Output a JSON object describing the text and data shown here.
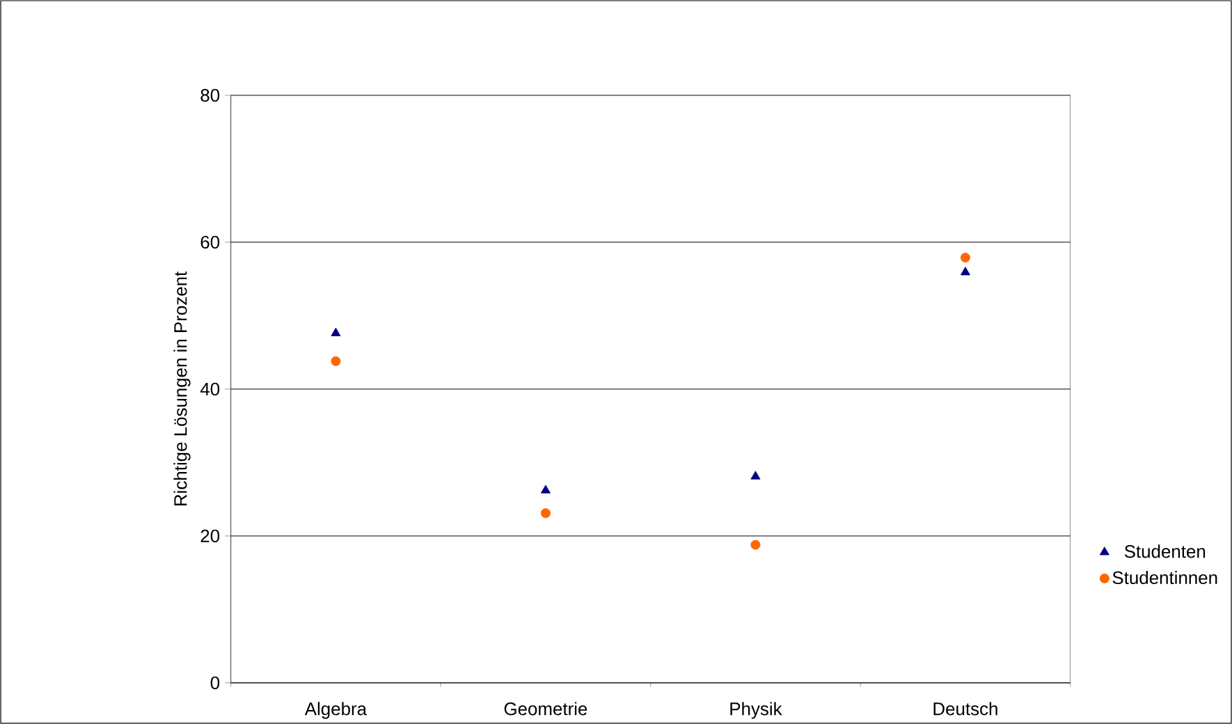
{
  "chart_data": {
    "type": "scatter",
    "ylabel": "Richtige Lösungen in Prozent",
    "categories": [
      "Algebra",
      "Geometrie",
      "Physik",
      "Deutsch"
    ],
    "series": [
      {
        "name": "Studenten",
        "color": "#000080",
        "marker": "triangle",
        "values": [
          47.6,
          26.2,
          28.1,
          55.9
        ]
      },
      {
        "name": "Studentinnen",
        "color": "#ff6600",
        "marker": "circle",
        "values": [
          43.8,
          23.1,
          18.8,
          57.9
        ]
      }
    ],
    "ylim": [
      0,
      80
    ],
    "yticks": [
      0,
      20,
      40,
      60,
      80
    ],
    "grid": "y",
    "legend": "right"
  }
}
